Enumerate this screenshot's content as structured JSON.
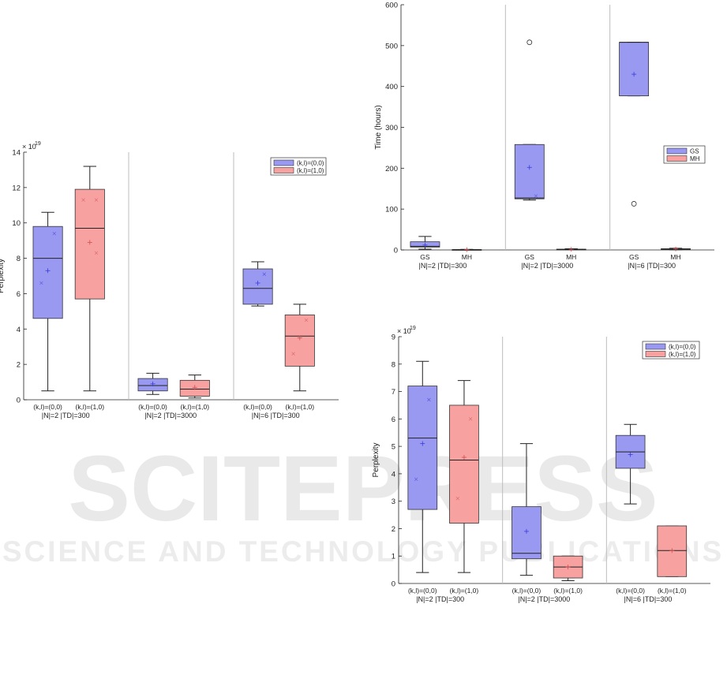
{
  "colors": {
    "blue_fill": "#9999f2",
    "blue_edge": "#3b3bd9",
    "red_fill": "#f7a1a1",
    "red_edge": "#d44d4d",
    "axis": "#222222",
    "separator": "#bdbdbd",
    "watermark": "#e8e8e8"
  },
  "watermark": {
    "line1": "SCITEPRESS",
    "line2": "SCIENCE AND TECHNOLOGY PUBLICATIONS"
  },
  "chart_data": [
    {
      "id": "top-left",
      "type": "box",
      "title": "",
      "ylabel": "Perplexity",
      "exponent": "× 10",
      "exponent_power": "19",
      "ylim": [
        0,
        14
      ],
      "yticks": [
        0,
        2,
        4,
        6,
        8,
        10,
        12,
        14
      ],
      "groups": [
        "|N|=2 |TD|=300",
        "|N|=2 |TD|=3000",
        "|N|=6 |TD|=300"
      ],
      "categories": [
        "(k,l)=(0,0)",
        "(k,l)=(1,0)"
      ],
      "legend": {
        "placement": "top-right",
        "entries": [
          "(k,l)=(0,0)",
          "(k,l)=(1,0)"
        ]
      },
      "boxes": [
        {
          "group": 0,
          "cat": 0,
          "color": "blue",
          "low": 0.5,
          "q1": 4.6,
          "median": 8.0,
          "q3": 9.8,
          "high": 10.6,
          "mean": 7.3,
          "points": [
            9.4,
            6.6
          ]
        },
        {
          "group": 0,
          "cat": 1,
          "color": "red",
          "low": 0.5,
          "q1": 5.7,
          "median": 9.7,
          "q3": 11.9,
          "high": 13.2,
          "mean": 8.9,
          "points": [
            11.3,
            11.3,
            8.3
          ]
        },
        {
          "group": 1,
          "cat": 0,
          "color": "blue",
          "low": 0.3,
          "q1": 0.5,
          "median": 0.8,
          "q3": 1.2,
          "high": 1.5,
          "mean": 0.9,
          "points": []
        },
        {
          "group": 1,
          "cat": 1,
          "color": "red",
          "low": 0.1,
          "q1": 0.2,
          "median": 0.6,
          "q3": 1.1,
          "high": 1.4,
          "mean": 0.7,
          "points": []
        },
        {
          "group": 2,
          "cat": 0,
          "color": "blue",
          "low": 5.3,
          "q1": 5.4,
          "median": 6.3,
          "q3": 7.4,
          "high": 7.8,
          "mean": 6.6,
          "points": [
            7.1
          ]
        },
        {
          "group": 2,
          "cat": 1,
          "color": "red",
          "low": 0.5,
          "q1": 1.9,
          "median": 3.6,
          "q3": 4.8,
          "high": 5.4,
          "mean": 3.5,
          "points": [
            4.5,
            2.6
          ]
        }
      ]
    },
    {
      "id": "top-right",
      "type": "box",
      "title": "",
      "ylabel": "Time (hours)",
      "exponent": "",
      "exponent_power": "",
      "ylim": [
        0,
        600
      ],
      "yticks": [
        0,
        100,
        200,
        300,
        400,
        500,
        600
      ],
      "groups": [
        "|N|=2 |TD|=300",
        "|N|=2 |TD|=3000",
        "|N|=6 |TD|=300"
      ],
      "categories": [
        "GS",
        "MH"
      ],
      "legend": {
        "placement": "right",
        "entries": [
          "GS",
          "MH"
        ]
      },
      "boxes": [
        {
          "group": 0,
          "cat": 0,
          "color": "blue",
          "low": 2,
          "q1": 7,
          "median": 9,
          "q3": 20,
          "high": 33,
          "mean": 12,
          "points": []
        },
        {
          "group": 0,
          "cat": 1,
          "color": "red",
          "low": 0,
          "q1": 0.3,
          "median": 0.5,
          "q3": 1,
          "high": 1.5,
          "mean": 0.8,
          "points": []
        },
        {
          "group": 1,
          "cat": 0,
          "color": "blue",
          "low": 122,
          "q1": 125,
          "median": 127,
          "q3": 258,
          "high": 258,
          "mean": 202,
          "points": [
            132
          ],
          "outliers": [
            508
          ]
        },
        {
          "group": 1,
          "cat": 1,
          "color": "red",
          "low": 0,
          "q1": 0.5,
          "median": 1,
          "q3": 2,
          "high": 3,
          "mean": 1.5,
          "points": []
        },
        {
          "group": 2,
          "cat": 0,
          "color": "blue",
          "low": 377,
          "q1": 377,
          "median": 508,
          "q3": 508,
          "high": 508,
          "mean": 430,
          "points": [],
          "outliers": [
            113
          ]
        },
        {
          "group": 2,
          "cat": 1,
          "color": "red",
          "low": 0.5,
          "q1": 1,
          "median": 2,
          "q3": 3,
          "high": 4,
          "mean": 2.5,
          "points": []
        }
      ]
    },
    {
      "id": "bottom-right",
      "type": "box",
      "title": "",
      "ylabel": "Perplexity",
      "exponent": "× 10",
      "exponent_power": "19",
      "ylim": [
        0,
        9
      ],
      "yticks": [
        0,
        1,
        2,
        3,
        4,
        5,
        6,
        7,
        8,
        9
      ],
      "groups": [
        "|N|=2 |TD|=300",
        "|N|=2 |TD|=3000",
        "|N|=6 |TD|=300"
      ],
      "categories": [
        "(k,l)=(0,0)",
        "(k,l)=(1,0)"
      ],
      "legend": {
        "placement": "top-right",
        "entries": [
          "(k,l)=(0,0)",
          "(k,l)=(1,0)"
        ]
      },
      "boxes": [
        {
          "group": 0,
          "cat": 0,
          "color": "blue",
          "low": 0.4,
          "q1": 2.7,
          "median": 5.3,
          "q3": 7.2,
          "high": 8.1,
          "mean": 5.1,
          "points": [
            6.7,
            3.8
          ]
        },
        {
          "group": 0,
          "cat": 1,
          "color": "red",
          "low": 0.4,
          "q1": 2.2,
          "median": 4.5,
          "q3": 6.5,
          "high": 7.4,
          "mean": 4.6,
          "points": [
            6.0,
            3.1
          ]
        },
        {
          "group": 1,
          "cat": 0,
          "color": "blue",
          "low": 0.3,
          "q1": 0.9,
          "median": 1.1,
          "q3": 2.8,
          "high": 5.1,
          "mean": 1.9,
          "points": []
        },
        {
          "group": 1,
          "cat": 1,
          "color": "red",
          "low": 0.1,
          "q1": 0.2,
          "median": 0.6,
          "q3": 1.0,
          "high": 1.0,
          "mean": 0.6,
          "points": []
        },
        {
          "group": 2,
          "cat": 0,
          "color": "blue",
          "low": 2.9,
          "q1": 4.2,
          "median": 4.8,
          "q3": 5.4,
          "high": 5.8,
          "mean": 4.7,
          "points": []
        },
        {
          "group": 2,
          "cat": 1,
          "color": "red",
          "low": 0.25,
          "q1": 0.25,
          "median": 1.2,
          "q3": 2.1,
          "high": 2.1,
          "mean": 1.2,
          "points": []
        }
      ]
    }
  ]
}
